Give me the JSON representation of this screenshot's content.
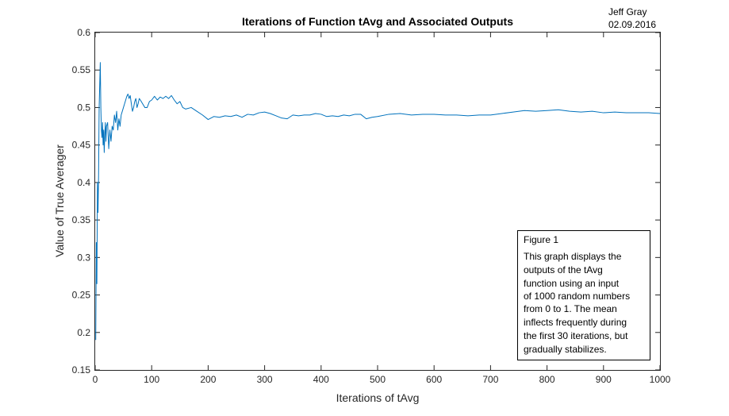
{
  "chart_data": {
    "type": "line",
    "title": "Iterations of Function tAvg and Associated Outputs",
    "xlabel": "Iterations of tAvg",
    "ylabel": "Value of True Averager",
    "xlim": [
      0,
      1000
    ],
    "ylim": [
      0.15,
      0.6
    ],
    "xticks": [
      0,
      100,
      200,
      300,
      400,
      500,
      600,
      700,
      800,
      900,
      1000
    ],
    "yticks": [
      0.15,
      0.2,
      0.25,
      0.3,
      0.35,
      0.4,
      0.45,
      0.5,
      0.55,
      0.6
    ],
    "xtick_labels": [
      "0",
      "100",
      "200",
      "300",
      "400",
      "500",
      "600",
      "700",
      "800",
      "900",
      "1000"
    ],
    "ytick_labels": [
      "0.15",
      "0.2",
      "0.25",
      "0.3",
      "0.35",
      "0.4",
      "0.45",
      "0.5",
      "0.55",
      "0.6"
    ],
    "grid": false,
    "series": [
      {
        "color": "#0072BD",
        "x": [
          1,
          2,
          3,
          4,
          5,
          6,
          7,
          8,
          9,
          10,
          11,
          12,
          13,
          14,
          15,
          16,
          17,
          18,
          19,
          20,
          22,
          24,
          26,
          28,
          30,
          32,
          34,
          36,
          38,
          40,
          42,
          44,
          46,
          48,
          50,
          52,
          54,
          56,
          58,
          60,
          62,
          64,
          66,
          68,
          70,
          72,
          74,
          76,
          78,
          80,
          84,
          88,
          92,
          96,
          100,
          105,
          110,
          115,
          120,
          125,
          130,
          135,
          140,
          145,
          150,
          155,
          160,
          170,
          180,
          190,
          200,
          210,
          220,
          230,
          240,
          250,
          260,
          270,
          280,
          290,
          300,
          310,
          320,
          330,
          340,
          350,
          360,
          370,
          380,
          390,
          400,
          410,
          420,
          430,
          440,
          450,
          460,
          470,
          480,
          490,
          500,
          520,
          540,
          560,
          580,
          600,
          620,
          640,
          660,
          680,
          700,
          720,
          740,
          760,
          780,
          800,
          820,
          840,
          860,
          880,
          900,
          920,
          940,
          960,
          980,
          1000
        ],
        "y": [
          0.19,
          0.32,
          0.265,
          0.4,
          0.36,
          0.41,
          0.5,
          0.53,
          0.56,
          0.5,
          0.47,
          0.46,
          0.48,
          0.45,
          0.47,
          0.44,
          0.465,
          0.48,
          0.455,
          0.475,
          0.48,
          0.445,
          0.47,
          0.455,
          0.475,
          0.47,
          0.49,
          0.48,
          0.495,
          0.47,
          0.485,
          0.475,
          0.49,
          0.495,
          0.5,
          0.505,
          0.51,
          0.515,
          0.518,
          0.512,
          0.516,
          0.505,
          0.495,
          0.5,
          0.508,
          0.512,
          0.5,
          0.505,
          0.512,
          0.51,
          0.505,
          0.5,
          0.5,
          0.508,
          0.51,
          0.515,
          0.51,
          0.514,
          0.512,
          0.515,
          0.512,
          0.516,
          0.51,
          0.505,
          0.508,
          0.5,
          0.498,
          0.5,
          0.495,
          0.49,
          0.484,
          0.488,
          0.487,
          0.489,
          0.488,
          0.49,
          0.487,
          0.491,
          0.49,
          0.493,
          0.494,
          0.492,
          0.489,
          0.486,
          0.485,
          0.49,
          0.489,
          0.49,
          0.49,
          0.492,
          0.491,
          0.488,
          0.489,
          0.488,
          0.49,
          0.489,
          0.491,
          0.491,
          0.485,
          0.487,
          0.488,
          0.491,
          0.492,
          0.49,
          0.491,
          0.491,
          0.49,
          0.49,
          0.489,
          0.49,
          0.49,
          0.492,
          0.494,
          0.496,
          0.495,
          0.496,
          0.497,
          0.495,
          0.494,
          0.495,
          0.493,
          0.494,
          0.493,
          0.493,
          0.493,
          0.492
        ]
      }
    ],
    "annotation": {
      "lines": [
        "Figure 1",
        "This graph displays the",
        "outputs of the tAvg",
        "function using an input",
        "of 1000 random numbers",
        "from 0 to 1. The mean",
        "inflects frequently during",
        "the first 30 iterations, but",
        "gradually stabilizes."
      ]
    },
    "author": {
      "name": "Jeff Gray",
      "date": "02.09.2016"
    }
  }
}
